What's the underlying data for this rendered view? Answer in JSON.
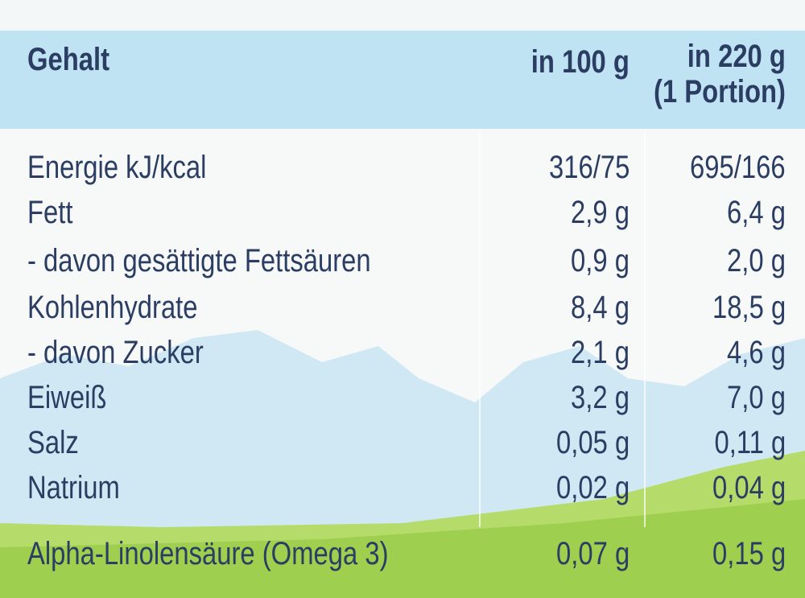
{
  "header": {
    "label": "Gehalt",
    "col1": "in 100 g",
    "col2_line1": "in 220 g",
    "col2_line2": "(1 Portion)"
  },
  "rows": [
    {
      "label": "Energie kJ/kcal",
      "per100": "316/75",
      "perPortion": "695/166"
    },
    {
      "label": "Fett",
      "per100": "2,9 g",
      "perPortion": "6,4 g"
    },
    {
      "label": "- davon gesättigte Fettsäuren",
      "per100": "0,9 g",
      "perPortion": "2,0 g"
    },
    {
      "label": "Kohlenhydrate",
      "per100": "8,4 g",
      "perPortion": "18,5 g"
    },
    {
      "label": "- davon Zucker",
      "per100": "2,1 g",
      "perPortion": "4,6 g"
    },
    {
      "label": "Eiweiß",
      "per100": "3,2 g",
      "perPortion": "7,0 g"
    },
    {
      "label": "Salz",
      "per100": "0,05 g",
      "perPortion": "0,11 g"
    },
    {
      "label": "Natrium",
      "per100": "0,02 g",
      "perPortion": "0,04 g"
    },
    {
      "label": "Alpha-Linolensäure (Omega 3)",
      "per100": "0,07 g",
      "perPortion": "0,15 g"
    }
  ],
  "colors": {
    "text": "#2b3d63",
    "header_band": "#bfe3f3",
    "mountain": "#cbe6f2",
    "meadow": "#a9d65a"
  }
}
